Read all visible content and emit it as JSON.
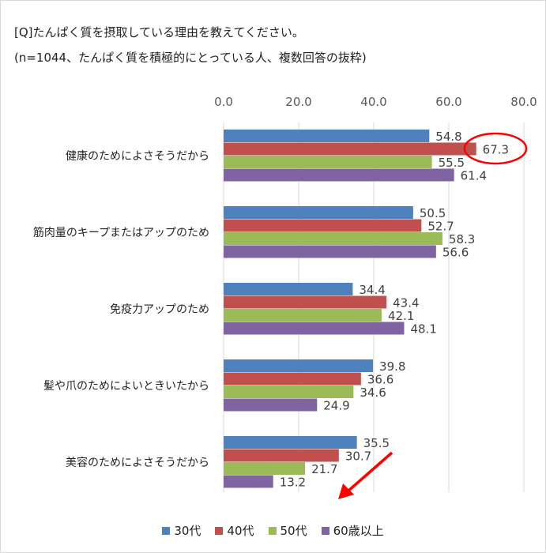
{
  "title": "[Q]たんぱく質を摂取している理由を教えてください。",
  "subtitle": "(n=1044、たんぱく質を積極的にとっている人、複数回答の抜粋)",
  "chart_data": {
    "type": "bar",
    "orientation": "horizontal",
    "title": "[Q]たんぱく質を摂取している理由を教えてください。",
    "subtitle": "(n=1044、たんぱく質を積極的にとっている人、複数回答の抜粋)",
    "categories": [
      "健康のためによさそうだから",
      "筋肉量のキープまたはアップのため",
      "免疫力アップのため",
      "髪や爪のためによいときいたから",
      "美容のためによさそうだから"
    ],
    "series": [
      {
        "name": "30代",
        "color": "#4f81bd",
        "values": [
          54.8,
          50.5,
          34.4,
          39.8,
          35.5
        ],
        "labels": [
          "54.8",
          "50.5",
          "34.4",
          "39.8",
          "35.5"
        ]
      },
      {
        "name": "40代",
        "color": "#c0504d",
        "values": [
          67.3,
          52.7,
          43.4,
          36.6,
          30.7
        ],
        "labels": [
          "67.3",
          "52.7",
          "43.4",
          "36.6",
          "30.7"
        ]
      },
      {
        "name": "50代",
        "color": "#9bbb59",
        "values": [
          55.5,
          58.3,
          42.1,
          34.6,
          21.7
        ],
        "labels": [
          "55.5",
          "58.3",
          "42.1",
          "34.6",
          "21.7"
        ]
      },
      {
        "name": "60歳以上",
        "color": "#8064a2",
        "values": [
          61.4,
          56.6,
          48.1,
          24.9,
          13.2
        ],
        "labels": [
          "61.4",
          "56.6",
          "48.1",
          "24.9",
          "13.2"
        ]
      }
    ],
    "xlim": [
      0,
      80
    ],
    "ticks": [
      "0.0",
      "20.0",
      "40.0",
      "60.0",
      "80.0"
    ],
    "tick_values": [
      0,
      20,
      40,
      60,
      80
    ],
    "axis_position": "top",
    "grid": true,
    "legend": "bottom",
    "annotations": [
      {
        "type": "ellipse",
        "target": "健康のためによさそうだから / 40代",
        "color": "#ff0000"
      },
      {
        "type": "arrow",
        "direction": "down-left",
        "near": "美容のためによさそうだから",
        "color": "#ff0000"
      }
    ]
  }
}
